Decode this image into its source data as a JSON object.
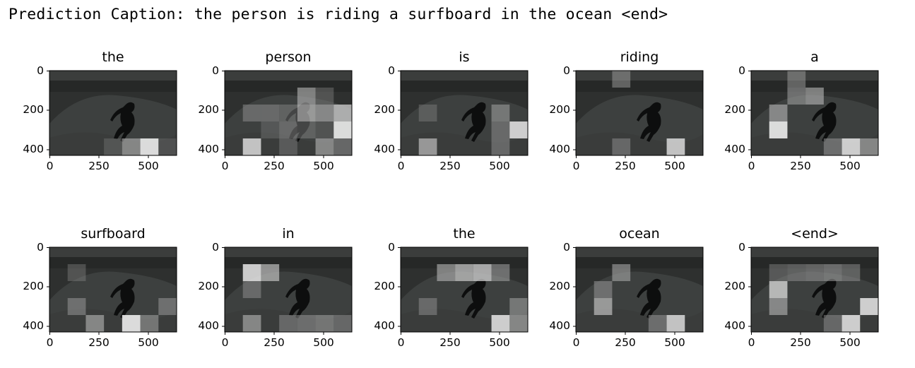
{
  "caption_text": "Prediction Caption: the person is riding a surfboard in the ocean <end>",
  "axes": {
    "y_ticks": [
      "0",
      "200",
      "400"
    ],
    "x_ticks": [
      "0",
      "250",
      "500"
    ]
  },
  "panels": [
    {
      "word": "the",
      "attention": [
        [
          0,
          0,
          0,
          0,
          0,
          0,
          0
        ],
        [
          0,
          0,
          0,
          0,
          0,
          0,
          0
        ],
        [
          0,
          0,
          0,
          0,
          0,
          0,
          0
        ],
        [
          0,
          0,
          0,
          0,
          0,
          0,
          0
        ],
        [
          0,
          0,
          0,
          0.15,
          0.5,
          0.9,
          0.1
        ]
      ]
    },
    {
      "word": "person",
      "attention": [
        [
          0,
          0,
          0,
          0,
          0,
          0,
          0
        ],
        [
          0,
          0,
          0,
          0,
          0.5,
          0.2,
          0
        ],
        [
          0,
          0.3,
          0.3,
          0.25,
          0.6,
          0.5,
          0.7
        ],
        [
          0,
          0,
          0.15,
          0.3,
          0.25,
          0.1,
          0.9
        ],
        [
          0,
          0.8,
          0,
          0.2,
          0,
          0.5,
          0.3
        ]
      ]
    },
    {
      "word": "is",
      "attention": [
        [
          0,
          0,
          0,
          0,
          0,
          0,
          0
        ],
        [
          0,
          0,
          0,
          0,
          0,
          0,
          0
        ],
        [
          0,
          0.2,
          0,
          0,
          0,
          0.4,
          0
        ],
        [
          0,
          0,
          0,
          0,
          0,
          0.3,
          0.85
        ],
        [
          0,
          0.6,
          0,
          0,
          0,
          0.3,
          0
        ]
      ]
    },
    {
      "word": "riding",
      "attention": [
        [
          0,
          0,
          0.35,
          0,
          0,
          0,
          0
        ],
        [
          0,
          0,
          0,
          0,
          0,
          0,
          0
        ],
        [
          0,
          0,
          0,
          0,
          0,
          0,
          0
        ],
        [
          0,
          0,
          0,
          0,
          0,
          0,
          0
        ],
        [
          0,
          0,
          0.3,
          0,
          0,
          0.8,
          0
        ]
      ]
    },
    {
      "word": "a",
      "attention": [
        [
          0,
          0,
          0.35,
          0,
          0,
          0,
          0
        ],
        [
          0,
          0,
          0.4,
          0.5,
          0,
          0,
          0
        ],
        [
          0,
          0.5,
          0,
          0,
          0,
          0,
          0
        ],
        [
          0,
          0.9,
          0,
          0,
          0,
          0,
          0
        ],
        [
          0,
          0,
          0,
          0,
          0.35,
          0.85,
          0.5
        ]
      ]
    },
    {
      "word": "surfboard",
      "attention": [
        [
          0,
          0,
          0,
          0,
          0,
          0,
          0
        ],
        [
          0,
          0.2,
          0,
          0,
          0,
          0,
          0
        ],
        [
          0,
          0,
          0,
          0,
          0,
          0,
          0
        ],
        [
          0,
          0.35,
          0,
          0,
          0,
          0,
          0.35
        ],
        [
          0,
          0,
          0.5,
          0,
          0.9,
          0.4,
          0
        ]
      ]
    },
    {
      "word": "in",
      "attention": [
        [
          0,
          0,
          0,
          0,
          0,
          0,
          0
        ],
        [
          0,
          0.85,
          0.6,
          0,
          0,
          0,
          0
        ],
        [
          0,
          0.3,
          0,
          0,
          0,
          0,
          0
        ],
        [
          0,
          0,
          0,
          0,
          0,
          0,
          0
        ],
        [
          0,
          0.5,
          0,
          0.3,
          0.35,
          0.4,
          0.3
        ]
      ]
    },
    {
      "word": "the",
      "attention": [
        [
          0,
          0,
          0,
          0,
          0,
          0,
          0
        ],
        [
          0,
          0,
          0.5,
          0.65,
          0.7,
          0.4,
          0
        ],
        [
          0,
          0,
          0,
          0,
          0,
          0,
          0
        ],
        [
          0,
          0.3,
          0,
          0,
          0,
          0,
          0.4
        ],
        [
          0,
          0,
          0,
          0,
          0,
          0.85,
          0.5
        ]
      ]
    },
    {
      "word": "ocean",
      "attention": [
        [
          0,
          0,
          0,
          0,
          0,
          0,
          0
        ],
        [
          0,
          0,
          0.45,
          0,
          0,
          0,
          0
        ],
        [
          0,
          0.35,
          0,
          0,
          0,
          0,
          0
        ],
        [
          0,
          0.6,
          0,
          0,
          0,
          0,
          0
        ],
        [
          0,
          0,
          0,
          0,
          0.35,
          0.8,
          0
        ]
      ]
    },
    {
      "word": "<end>",
      "attention": [
        [
          0,
          0,
          0,
          0,
          0,
          0,
          0
        ],
        [
          0,
          0.25,
          0.3,
          0.35,
          0.4,
          0.3,
          0
        ],
        [
          0,
          0.75,
          0,
          0,
          0,
          0,
          0
        ],
        [
          0,
          0.5,
          0,
          0,
          0,
          0,
          0.85
        ],
        [
          0,
          0,
          0,
          0,
          0.3,
          0.85,
          0
        ]
      ]
    }
  ]
}
